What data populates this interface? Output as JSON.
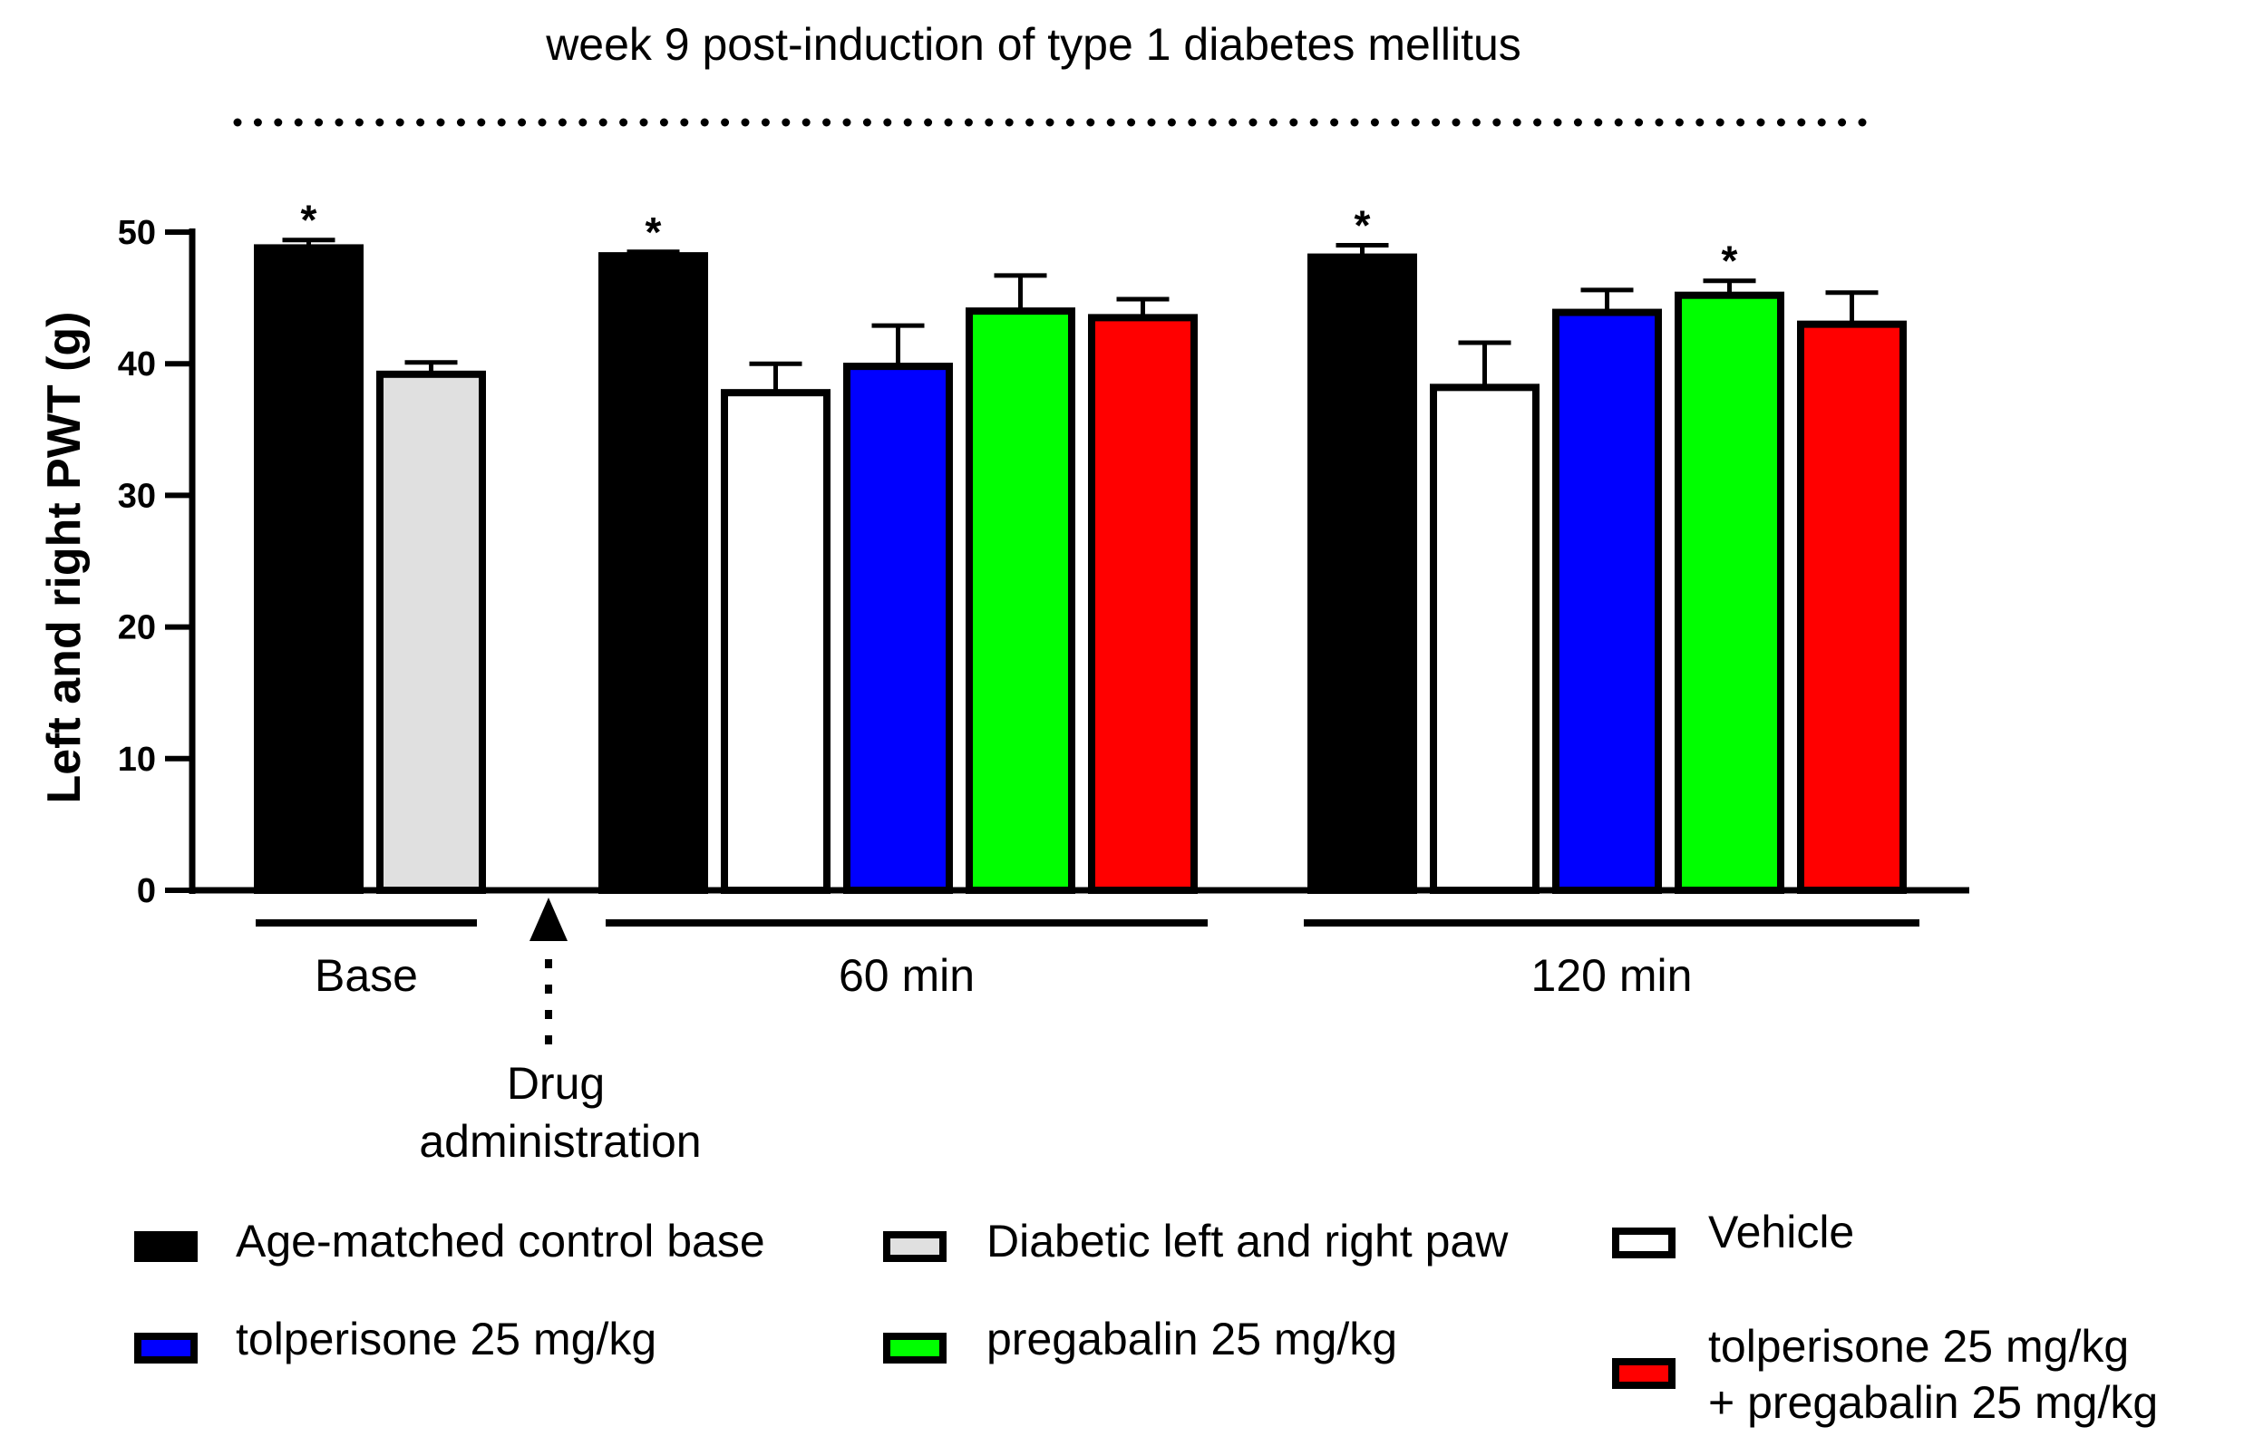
{
  "chart_data": {
    "type": "bar",
    "title": "week 9 post-induction of type 1 diabetes mellitus",
    "xlabel": "",
    "ylabel": "Left and right PWT (g)",
    "ylim": [
      0,
      50
    ],
    "yticks": [
      0,
      10,
      20,
      30,
      40,
      50
    ],
    "groups": [
      {
        "label": "Base",
        "bars": [
          {
            "series": "Age-matched control base",
            "value": 48.8,
            "error": 0.6,
            "significant": true
          },
          {
            "series": "Diabetic left and right paw",
            "value": 39.2,
            "error": 0.9,
            "significant": false
          }
        ]
      },
      {
        "label": "60 min",
        "bars": [
          {
            "series": "Age-matched control base",
            "value": 48.2,
            "error": 0.3,
            "significant": true
          },
          {
            "series": "Vehicle",
            "value": 37.8,
            "error": 2.2,
            "significant": false
          },
          {
            "series": "tolperisone 25 mg/kg",
            "value": 39.8,
            "error": 3.1,
            "significant": false
          },
          {
            "series": "pregabalin 25 mg/kg",
            "value": 44.0,
            "error": 2.7,
            "significant": false
          },
          {
            "series": "tolperisone 25 mg/kg + pregabalin 25 mg/kg",
            "value": 43.5,
            "error": 1.4,
            "significant": false
          }
        ]
      },
      {
        "label": "120 min",
        "bars": [
          {
            "series": "Age-matched control base",
            "value": 48.1,
            "error": 0.9,
            "significant": true
          },
          {
            "series": "Vehicle",
            "value": 38.2,
            "error": 3.4,
            "significant": false
          },
          {
            "series": "tolperisone 25 mg/kg",
            "value": 43.9,
            "error": 1.7,
            "significant": false
          },
          {
            "series": "pregabalin 25 mg/kg",
            "value": 45.2,
            "error": 1.1,
            "significant": true
          },
          {
            "series": "tolperisone 25 mg/kg + pregabalin 25 mg/kg",
            "value": 43.0,
            "error": 2.4,
            "significant": false
          }
        ]
      }
    ],
    "series": [
      {
        "name": "Age-matched control base",
        "color": "#000000"
      },
      {
        "name": "Diabetic left and right paw",
        "color": "#e0e0e0"
      },
      {
        "name": "Vehicle",
        "color": "#ffffff"
      },
      {
        "name": "tolperisone 25 mg/kg",
        "color": "#0000ff"
      },
      {
        "name": "pregabalin 25 mg/kg",
        "color": "#00ff00"
      },
      {
        "name": "tolperisone 25 mg/kg + pregabalin 25 mg/kg",
        "color": "#ff0000"
      }
    ],
    "legend": [
      {
        "label": "Age-matched control base",
        "color": "#000000",
        "lines": [
          "Age-matched control base"
        ]
      },
      {
        "label": "Diabetic left and right paw",
        "color": "#e0e0e0",
        "lines": [
          "Diabetic left and right paw"
        ]
      },
      {
        "label": "Vehicle",
        "color": "#ffffff",
        "lines": [
          "Vehicle"
        ]
      },
      {
        "label": "tolperisone 25 mg/kg",
        "color": "#0000ff",
        "lines": [
          "tolperisone 25 mg/kg"
        ]
      },
      {
        "label": "pregabalin 25 mg/kg",
        "color": "#00ff00",
        "lines": [
          "pregabalin 25 mg/kg"
        ]
      },
      {
        "label": "tolperisone 25 mg/kg + pregabalin 25 mg/kg",
        "color": "#ff0000",
        "lines": [
          "tolperisone 25 mg/kg",
          "+ pregabalin 25 mg/kg"
        ]
      }
    ],
    "annotation": {
      "arrow_label_line1": "Drug",
      "arrow_label_line2": "administration"
    },
    "significance_marker": "*"
  }
}
